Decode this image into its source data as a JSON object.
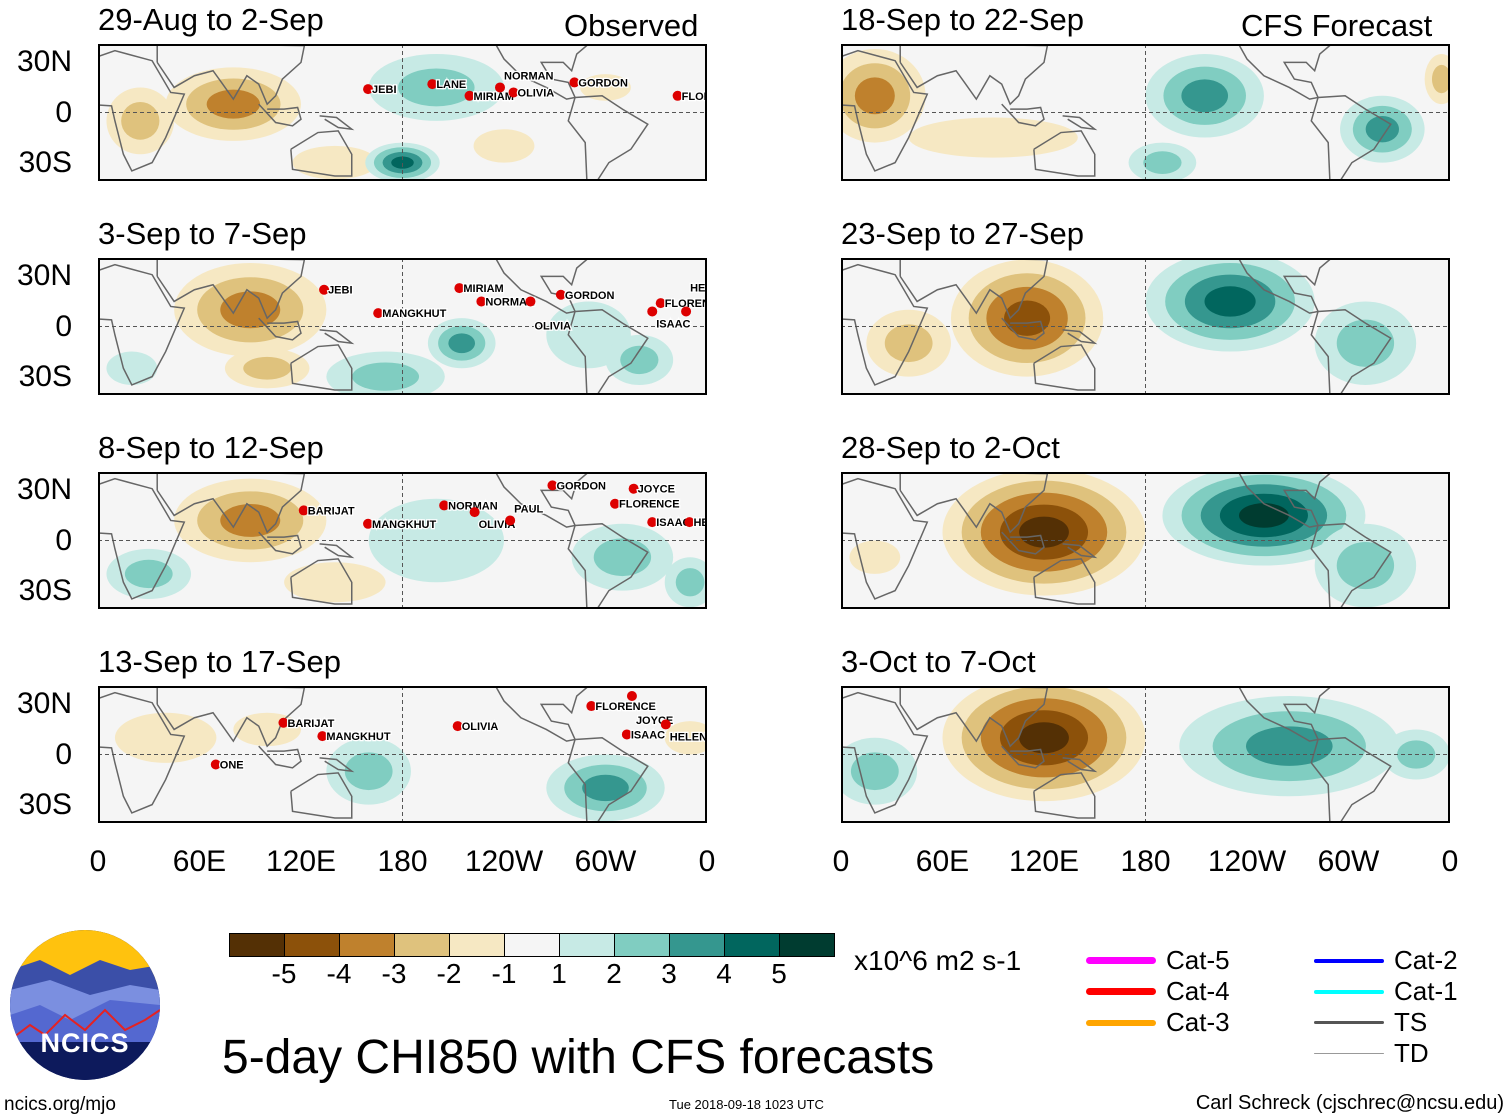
{
  "panel_labels": {
    "observed": "Observed",
    "forecast": "CFS Forecast"
  },
  "lat_labels": [
    "30N",
    "0",
    "30S"
  ],
  "lon_labels": [
    "0",
    "60E",
    "120E",
    "180",
    "120W",
    "60W",
    "0"
  ],
  "colorbar": {
    "colors": [
      "#543005",
      "#8c510a",
      "#bf812d",
      "#dfc27d",
      "#f6e8c3",
      "#f5f5f5",
      "#c7eae5",
      "#80cdc1",
      "#35978f",
      "#01665e",
      "#003c30"
    ],
    "ticks": [
      "-5",
      "-4",
      "-3",
      "-2",
      "-1",
      "1",
      "2",
      "3",
      "4",
      "5"
    ],
    "units": "x10^6 m2 s-1"
  },
  "legend": [
    {
      "label": "Cat-5",
      "color": "#ff00ff",
      "width": 7
    },
    {
      "label": "Cat-4",
      "color": "#ff0000",
      "width": 7
    },
    {
      "label": "Cat-3",
      "color": "#ffa500",
      "width": 6
    },
    {
      "label": "Cat-2",
      "color": "#0000ff",
      "width": 4
    },
    {
      "label": "Cat-1",
      "color": "#00ffff",
      "width": 4
    },
    {
      "label": "TS",
      "color": "#555555",
      "width": 3
    },
    {
      "label": "TD",
      "color": "#999999",
      "width": 1
    }
  ],
  "title": "5-day CHI850 with CFS forecasts",
  "logo": "NCICS",
  "footer": {
    "left": "ncics.org/mjo",
    "center": "Tue 2018-09-18 1023 UTC",
    "right": "Carl Schreck (cjschrec@ncsu.edu)"
  },
  "panels": [
    {
      "title": "29-Aug to 2-Sep",
      "tag": "observed",
      "blobs": [
        [
          80,
          5,
          40,
          22,
          -3
        ],
        [
          25,
          -5,
          20,
          20,
          -2
        ],
        [
          140,
          -30,
          25,
          10,
          -1
        ],
        [
          180,
          -30,
          22,
          12,
          4
        ],
        [
          200,
          15,
          40,
          20,
          2
        ],
        [
          240,
          -20,
          18,
          10,
          -1
        ],
        [
          300,
          15,
          15,
          8,
          -1
        ]
      ],
      "storms": [
        [
          "JEBI",
          162,
          14
        ],
        [
          "LANE",
          200,
          17
        ],
        [
          "MIRIAM",
          222,
          10
        ],
        [
          "OLIVIA",
          248,
          12
        ],
        [
          "NORMAN",
          240,
          15
        ],
        [
          "GORDON",
          284,
          18
        ],
        [
          "FLORENCE",
          345,
          10
        ]
      ]
    },
    {
      "title": "3-Sep to 7-Sep",
      "tag": "observed",
      "blobs": [
        [
          90,
          10,
          45,
          28,
          -3
        ],
        [
          100,
          -25,
          25,
          12,
          -2
        ],
        [
          170,
          -30,
          35,
          15,
          2
        ],
        [
          215,
          -10,
          20,
          15,
          3
        ],
        [
          290,
          -5,
          25,
          20,
          1
        ],
        [
          320,
          -20,
          20,
          15,
          2
        ],
        [
          20,
          -25,
          15,
          10,
          1
        ]
      ],
      "storms": [
        [
          "JEBI",
          136,
          22
        ],
        [
          "MANGKHUT",
          168,
          8
        ],
        [
          "MIRIAM",
          216,
          23
        ],
        [
          "NORMAN",
          229,
          15
        ],
        [
          "OLIVIA",
          258,
          15
        ],
        [
          "GORDON",
          276,
          19
        ],
        [
          "FLORENCE",
          335,
          14
        ],
        [
          "ISAAC",
          330,
          9
        ],
        [
          "HELENE",
          350,
          9
        ]
      ]
    },
    {
      "title": "8-Sep to 12-Sep",
      "tag": "observed",
      "blobs": [
        [
          90,
          12,
          45,
          25,
          -3
        ],
        [
          140,
          -25,
          30,
          12,
          -1
        ],
        [
          30,
          -20,
          25,
          15,
          2
        ],
        [
          200,
          0,
          40,
          25,
          1
        ],
        [
          310,
          -10,
          30,
          20,
          2
        ],
        [
          350,
          -25,
          15,
          15,
          2
        ]
      ],
      "storms": [
        [
          "BARIJAT",
          124,
          18
        ],
        [
          "MANGKHUT",
          162,
          10
        ],
        [
          "NORMAN",
          207,
          21
        ],
        [
          "OLIVIA",
          225,
          17
        ],
        [
          "PAUL",
          246,
          12
        ],
        [
          "GORDON",
          271,
          33
        ],
        [
          "JOYCE",
          319,
          31
        ],
        [
          "FLORENCE",
          308,
          22
        ],
        [
          "ISAAC",
          330,
          11
        ],
        [
          "HELENE",
          352,
          11
        ]
      ]
    },
    {
      "title": "13-Sep to 17-Sep",
      "tag": "observed",
      "blobs": [
        [
          40,
          10,
          30,
          15,
          -1
        ],
        [
          160,
          -10,
          25,
          20,
          2
        ],
        [
          300,
          -20,
          35,
          20,
          3
        ],
        [
          100,
          15,
          20,
          10,
          -1
        ],
        [
          350,
          10,
          15,
          10,
          -1
        ]
      ],
      "storms": [
        [
          "BARIJAT",
          112,
          19
        ],
        [
          "MANGKHUT",
          135,
          11
        ],
        [
          "ONE",
          72,
          -6
        ],
        [
          "OLIVIA",
          215,
          17
        ],
        [
          "FLORENCE",
          294,
          29
        ],
        [
          "JOYCE",
          318,
          35
        ],
        [
          "HELENE",
          338,
          18
        ],
        [
          "ISAAC",
          315,
          12
        ]
      ]
    },
    {
      "title": "18-Sep to 22-Sep",
      "tag": "forecast",
      "blobs": [
        [
          20,
          10,
          30,
          28,
          -3
        ],
        [
          90,
          -15,
          50,
          12,
          -1
        ],
        [
          215,
          10,
          35,
          25,
          3
        ],
        [
          190,
          -30,
          20,
          12,
          2
        ],
        [
          320,
          -10,
          25,
          20,
          3
        ],
        [
          355,
          20,
          10,
          15,
          -2
        ]
      ],
      "storms": []
    },
    {
      "title": "23-Sep to 27-Sep",
      "tag": "forecast",
      "blobs": [
        [
          110,
          5,
          45,
          35,
          -4
        ],
        [
          40,
          -10,
          25,
          20,
          -2
        ],
        [
          230,
          15,
          50,
          30,
          4
        ],
        [
          310,
          -10,
          30,
          25,
          2
        ]
      ],
      "storms": []
    },
    {
      "title": "28-Sep to 2-Oct",
      "tag": "forecast",
      "blobs": [
        [
          120,
          5,
          60,
          38,
          -5
        ],
        [
          250,
          15,
          60,
          30,
          5
        ],
        [
          310,
          -15,
          30,
          25,
          2
        ],
        [
          20,
          -10,
          15,
          10,
          -1
        ]
      ],
      "storms": []
    },
    {
      "title": "3-Oct to 7-Oct",
      "tag": "forecast",
      "blobs": [
        [
          120,
          10,
          60,
          38,
          -5
        ],
        [
          265,
          5,
          65,
          30,
          3
        ],
        [
          20,
          -10,
          25,
          20,
          2
        ],
        [
          340,
          0,
          20,
          15,
          2
        ]
      ],
      "storms": []
    }
  ]
}
